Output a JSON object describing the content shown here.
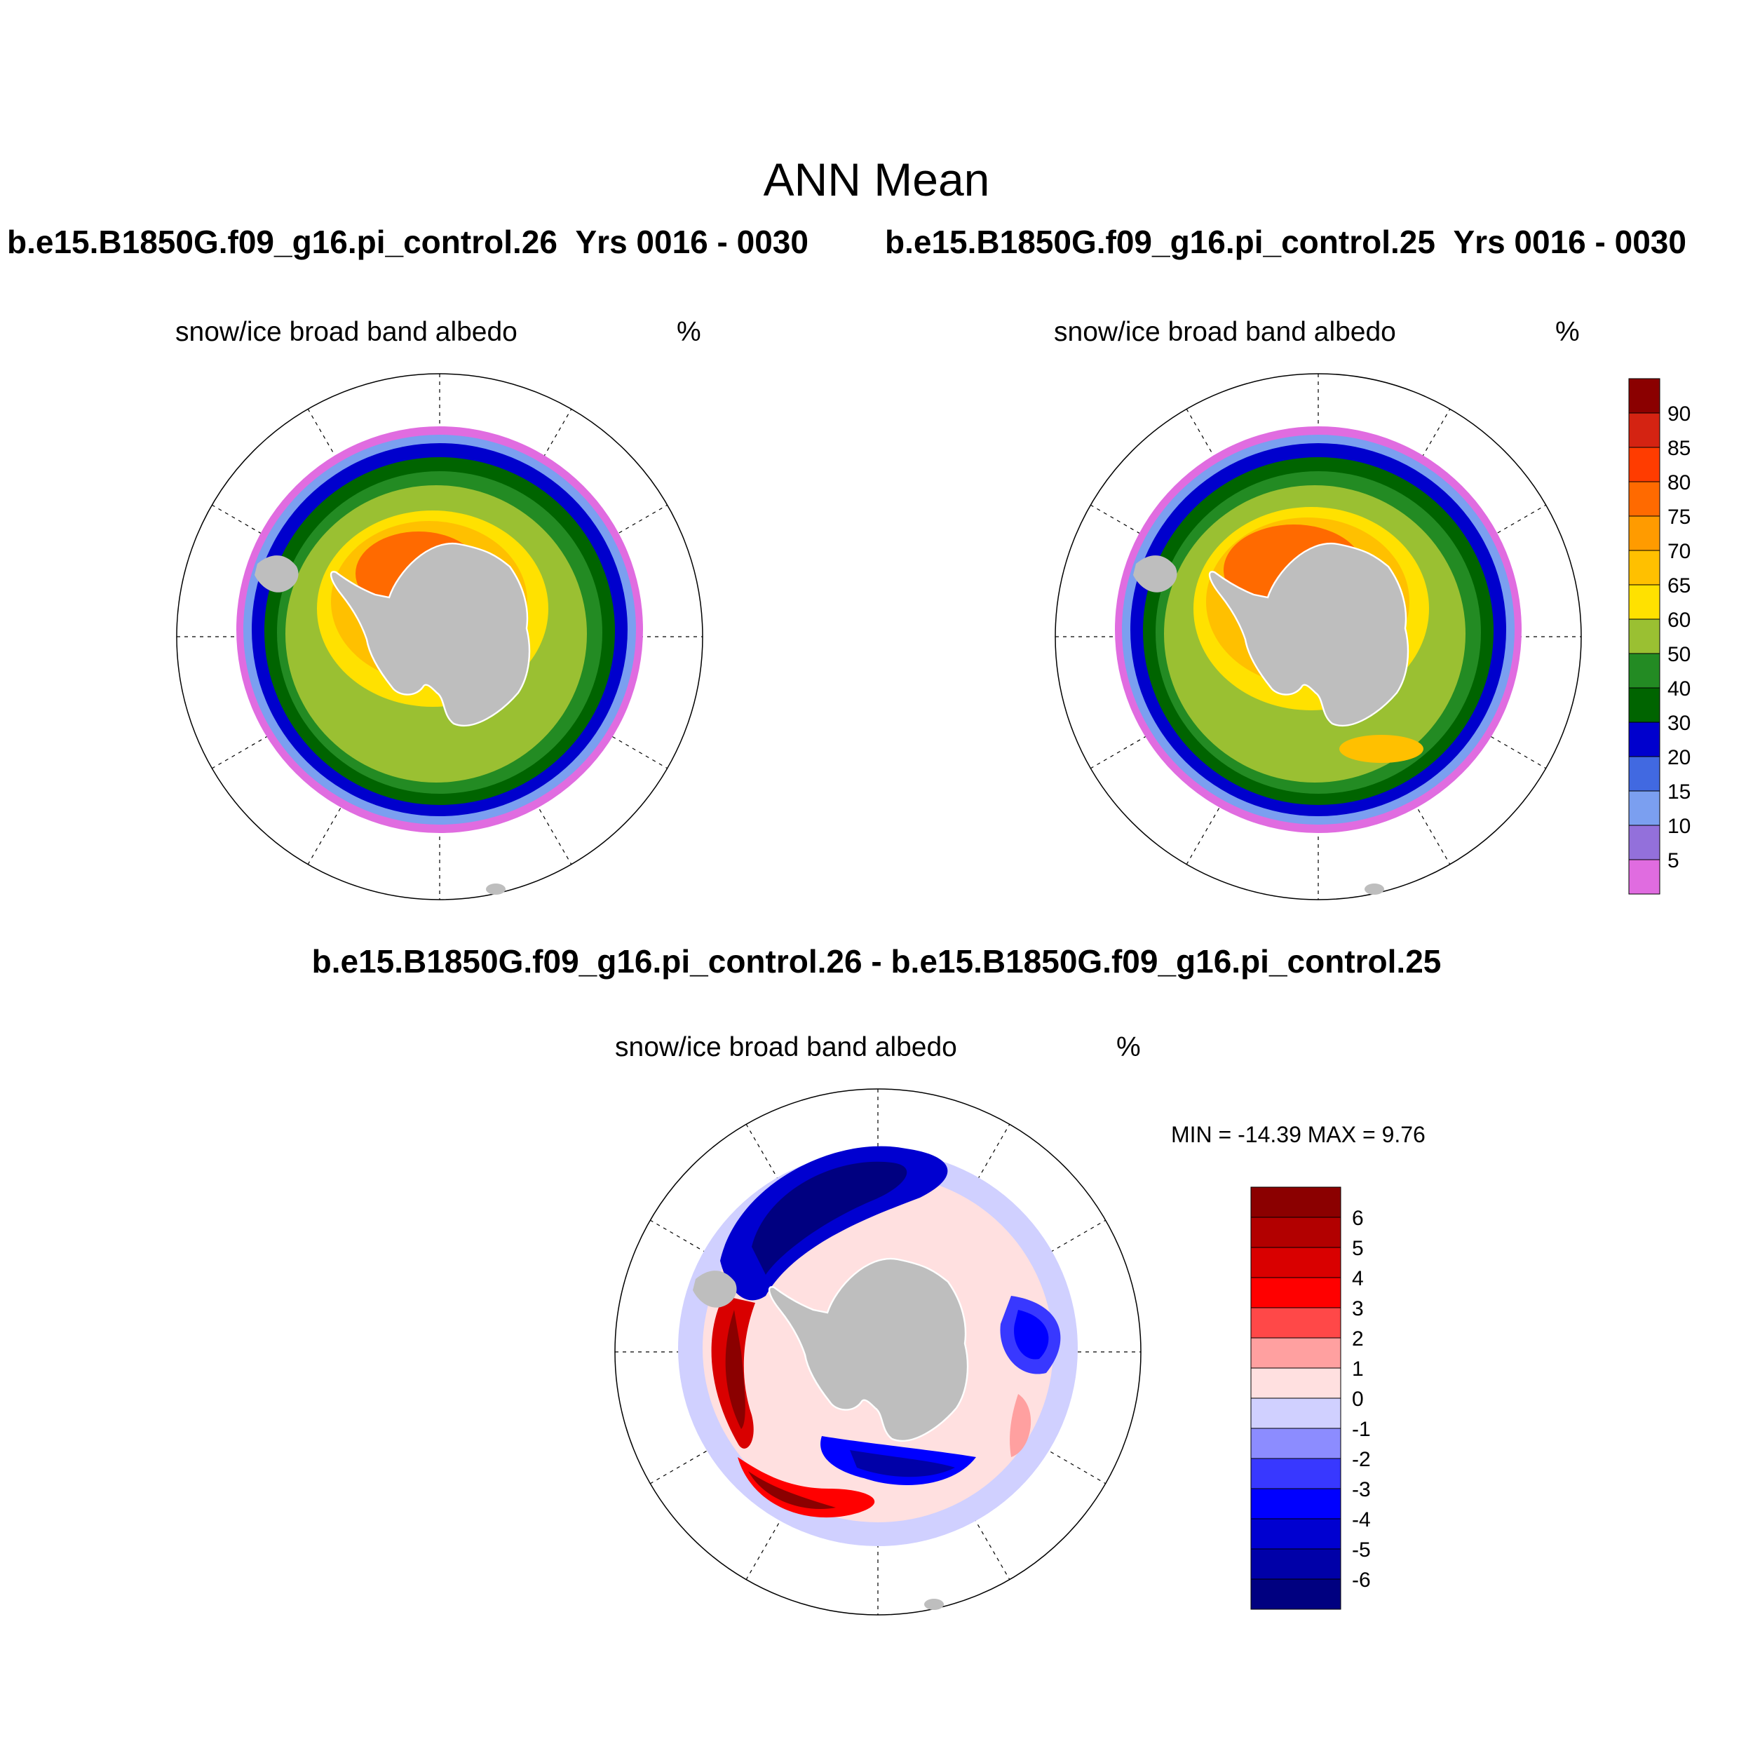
{
  "figure": {
    "title": "ANN Mean",
    "case_a": "b.e15.B1850G.f09_g16.pi_control.26",
    "case_b": "b.e15.B1850G.f09_g16.pi_control.25",
    "years_a": "Yrs 0016 - 0030",
    "years_b": "Yrs 0016 - 0030",
    "diff_title": "b.e15.B1850G.f09_g16.pi_control.26 - b.e15.B1850G.f09_g16.pi_control.25"
  },
  "panels": [
    {
      "id": "left",
      "variable": "snow/ice broad band albedo",
      "units": "%"
    },
    {
      "id": "right",
      "variable": "snow/ice broad band albedo",
      "units": "%"
    },
    {
      "id": "diff",
      "variable": "snow/ice broad band albedo",
      "units": "%",
      "min_max": "MIN = -14.39 MAX =   9.76"
    }
  ],
  "map": {
    "projection": "south polar stereographic",
    "region": "Southern Ocean / Antarctica",
    "land_color": "#bebebe",
    "grid": true
  },
  "colorbar_abs": {
    "labels": [
      "90",
      "85",
      "80",
      "75",
      "70",
      "65",
      "60",
      "50",
      "40",
      "30",
      "20",
      "15",
      "10",
      "5"
    ],
    "colors": [
      "#8b0000",
      "#d42312",
      "#ff3c00",
      "#ff6a00",
      "#ff9b00",
      "#ffc000",
      "#ffe100",
      "#9ac032",
      "#238b23",
      "#006400",
      "#0000cd",
      "#4169e1",
      "#7b9ff0",
      "#9370db",
      "#e06ce0"
    ]
  },
  "colorbar_diff": {
    "labels": [
      "6",
      "5",
      "4",
      "3",
      "2",
      "1",
      "0",
      "-1",
      "-2",
      "-3",
      "-4",
      "-5",
      "-6"
    ],
    "colors": [
      "#8b0000",
      "#b20000",
      "#d90000",
      "#ff0000",
      "#ff4848",
      "#ffa0a0",
      "#ffe0e0",
      "#d0d0ff",
      "#8c8cff",
      "#3838ff",
      "#0000ff",
      "#0000d0",
      "#0000a8",
      "#000080"
    ]
  }
}
